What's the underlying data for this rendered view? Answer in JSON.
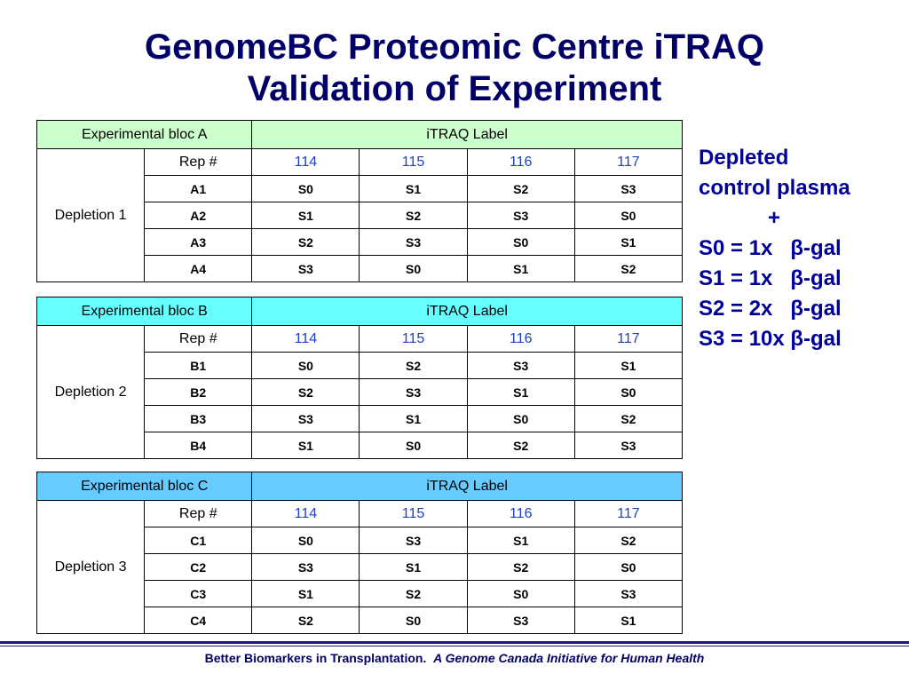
{
  "title": {
    "line1": "GenomeBC Proteomic Centre iTRAQ",
    "line2": "Validation of Experiment"
  },
  "colors": {
    "bloc_a_header": "#ccffcc",
    "bloc_b_header": "#66ffff",
    "bloc_c_header": "#66ccff",
    "label_text": "#1f3fc1",
    "side_text": "#000099",
    "title_text": "#000066"
  },
  "blocs": [
    {
      "name": "Experimental bloc A",
      "label_header": "iTRAQ Label",
      "depletion": "Depletion 1",
      "rep_header": "Rep #",
      "labels": [
        "114",
        "115",
        "116",
        "117"
      ],
      "rows": [
        {
          "rep": "A1",
          "cells": [
            "S0",
            "S1",
            "S2",
            "S3"
          ]
        },
        {
          "rep": "A2",
          "cells": [
            "S1",
            "S2",
            "S3",
            "S0"
          ]
        },
        {
          "rep": "A3",
          "cells": [
            "S2",
            "S3",
            "S0",
            "S1"
          ]
        },
        {
          "rep": "A4",
          "cells": [
            "S3",
            "S0",
            "S1",
            "S2"
          ]
        }
      ]
    },
    {
      "name": "Experimental bloc B",
      "label_header": "iTRAQ Label",
      "depletion": "Depletion 2",
      "rep_header": "Rep #",
      "labels": [
        "114",
        "115",
        "116",
        "117"
      ],
      "rows": [
        {
          "rep": "B1",
          "cells": [
            "S0",
            "S2",
            "S3",
            "S1"
          ]
        },
        {
          "rep": "B2",
          "cells": [
            "S2",
            "S3",
            "S1",
            "S0"
          ]
        },
        {
          "rep": "B3",
          "cells": [
            "S3",
            "S1",
            "S0",
            "S2"
          ]
        },
        {
          "rep": "B4",
          "cells": [
            "S1",
            "S0",
            "S2",
            "S3"
          ]
        }
      ]
    },
    {
      "name": "Experimental bloc C",
      "label_header": "iTRAQ Label",
      "depletion": "Depletion 3",
      "rep_header": "Rep #",
      "labels": [
        "114",
        "115",
        "116",
        "117"
      ],
      "rows": [
        {
          "rep": "C1",
          "cells": [
            "S0",
            "S3",
            "S1",
            "S2"
          ]
        },
        {
          "rep": "C2",
          "cells": [
            "S3",
            "S1",
            "S2",
            "S0"
          ]
        },
        {
          "rep": "C3",
          "cells": [
            "S1",
            "S2",
            "S0",
            "S3"
          ]
        },
        {
          "rep": "C4",
          "cells": [
            "S2",
            "S0",
            "S3",
            "S1"
          ]
        }
      ]
    }
  ],
  "side": {
    "line1": "Depleted",
    "line2": "control plasma",
    "plus": "+",
    "items": [
      "S0 = 1x   β-gal",
      "S1 = 1x   β-gal",
      "S2 = 2x   β-gal",
      "S3 = 10x β-gal"
    ]
  },
  "footer": {
    "left": "Better Biomarkers in Transplantation.",
    "right": "A Genome Canada Initiative for Human Health"
  }
}
